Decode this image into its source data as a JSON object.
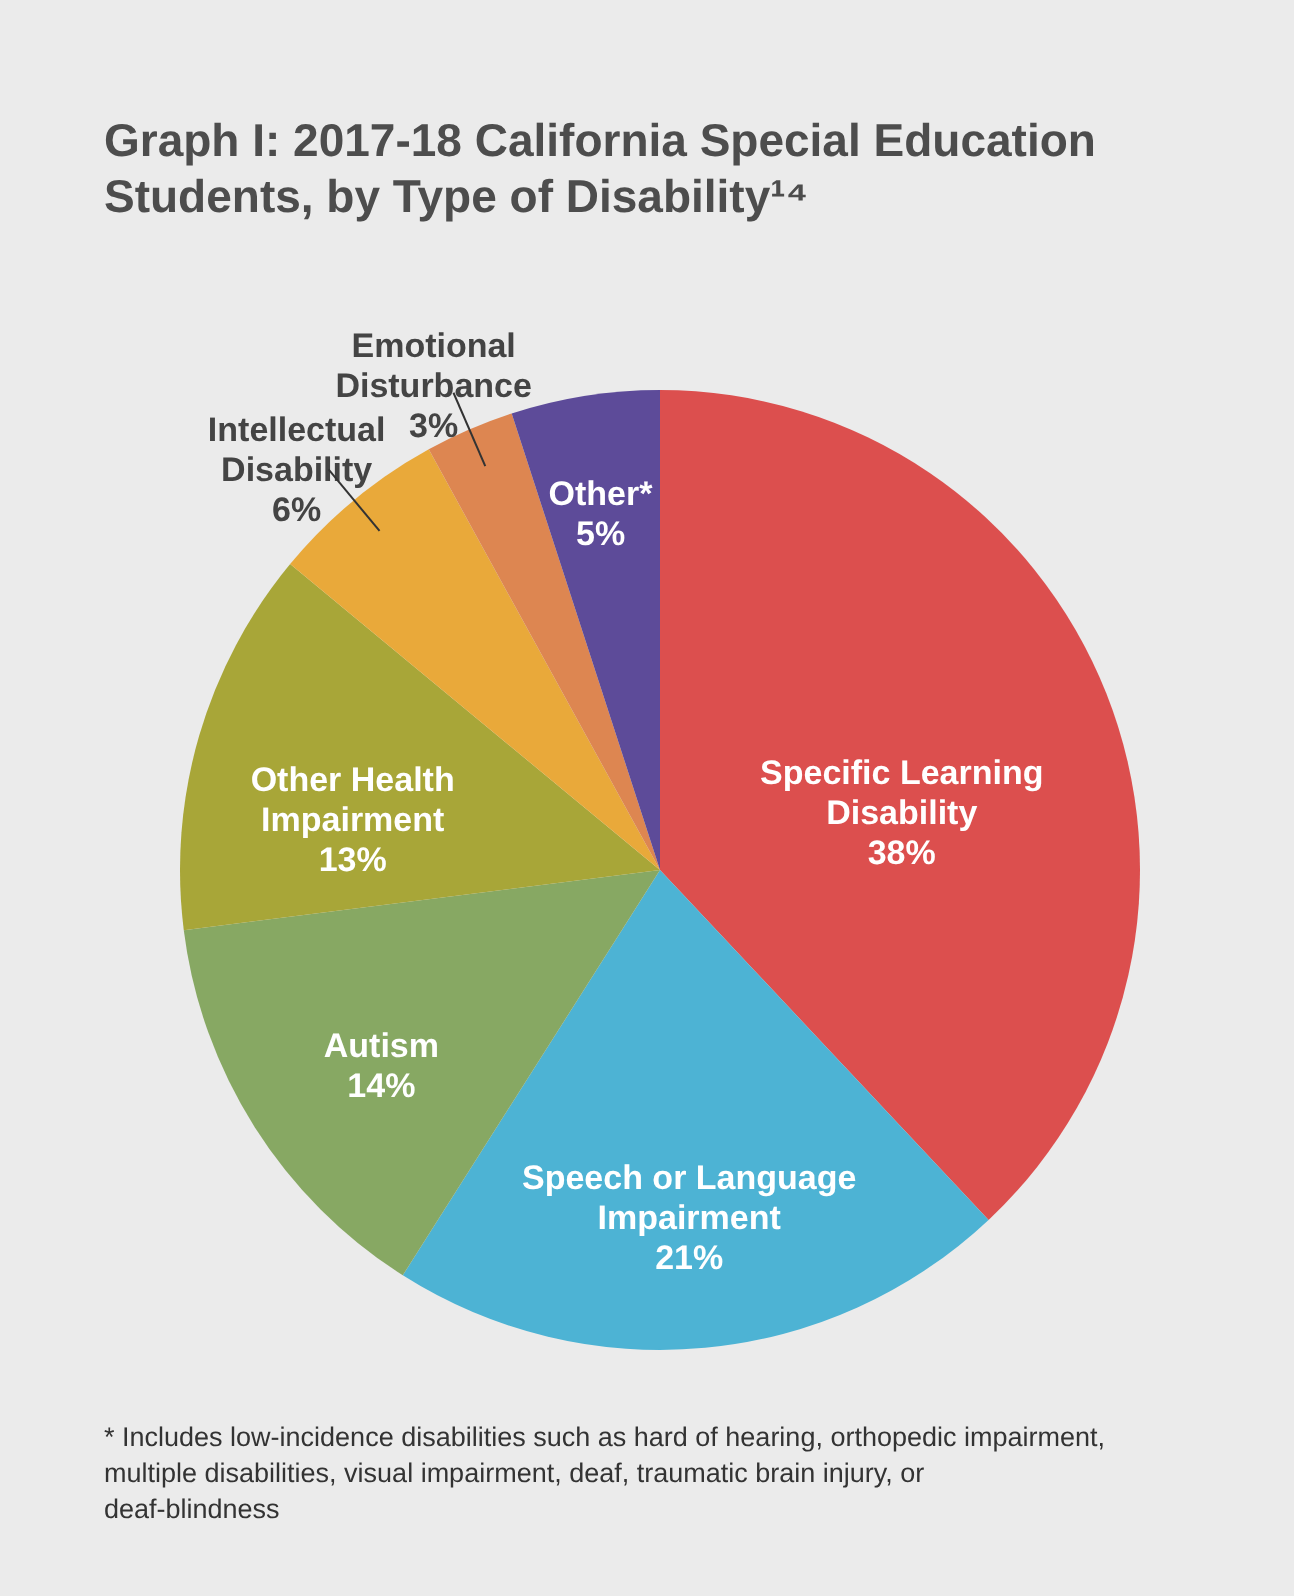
{
  "chart_data": {
    "type": "pie",
    "title": "Graph I: 2017-18 California Special Education Students, by Type of Disability¹⁴",
    "categories": [
      "Specific Learning Disability",
      "Speech or Language Impairment",
      "Autism",
      "Other Health Impairment",
      "Intellectual Disability",
      "Emotional Disturbance",
      "Other*"
    ],
    "values": [
      38,
      21,
      14,
      13,
      6,
      3,
      5
    ],
    "value_labels": [
      "38%",
      "21%",
      "14%",
      "13%",
      "6%",
      "3%",
      "5%"
    ],
    "colors": [
      "#dc4f4e",
      "#4db3d4",
      "#87a863",
      "#a8a638",
      "#e9a93a",
      "#dd8651",
      "#5d4b99"
    ],
    "annotations": [
      "* Includes low-incidence disabilities such as hard of hearing, orthopedic impairment, multiple disabilities, visual impairment, deaf, traumatic brain injury, or deaf-blindness"
    ]
  }
}
